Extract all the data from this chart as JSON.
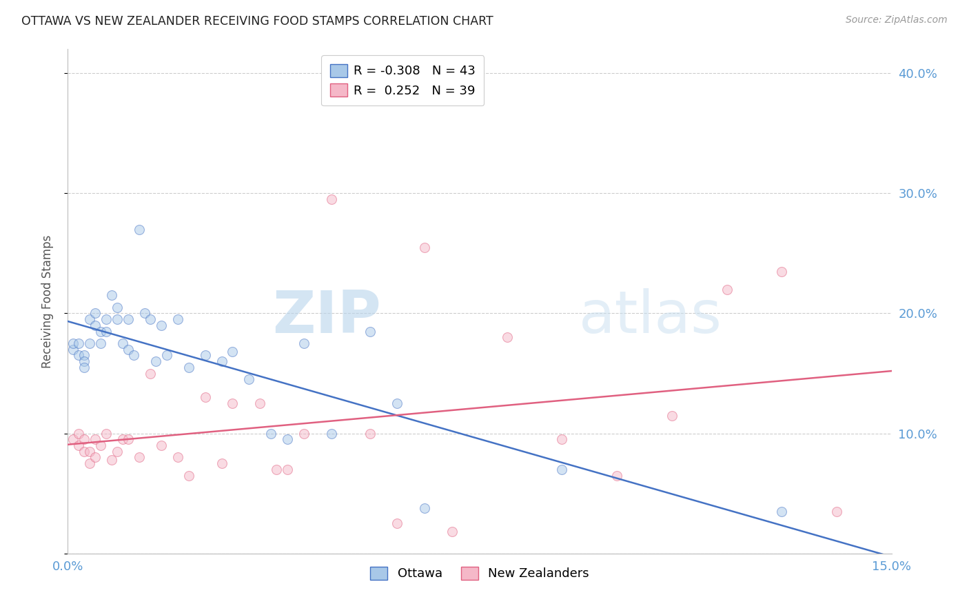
{
  "title": "OTTAWA VS NEW ZEALANDER RECEIVING FOOD STAMPS CORRELATION CHART",
  "source": "Source: ZipAtlas.com",
  "ylabel": "Receiving Food Stamps",
  "xlim": [
    0.0,
    0.15
  ],
  "ylim": [
    0.0,
    0.42
  ],
  "yticks": [
    0.0,
    0.1,
    0.2,
    0.3,
    0.4
  ],
  "ytick_labels": [
    "",
    "10.0%",
    "20.0%",
    "30.0%",
    "40.0%"
  ],
  "ottawa_color": "#a8c8e8",
  "nz_color": "#f5b8c8",
  "ottawa_line_color": "#4472c4",
  "nz_line_color": "#e06080",
  "legend_ottawa_R": "-0.308",
  "legend_ottawa_N": "43",
  "legend_nz_R": "0.252",
  "legend_nz_N": "39",
  "ottawa_x": [
    0.001,
    0.001,
    0.002,
    0.002,
    0.003,
    0.003,
    0.003,
    0.004,
    0.004,
    0.005,
    0.005,
    0.006,
    0.006,
    0.007,
    0.007,
    0.008,
    0.009,
    0.009,
    0.01,
    0.011,
    0.011,
    0.012,
    0.013,
    0.014,
    0.015,
    0.016,
    0.017,
    0.018,
    0.02,
    0.022,
    0.025,
    0.028,
    0.03,
    0.033,
    0.037,
    0.04,
    0.043,
    0.048,
    0.055,
    0.06,
    0.065,
    0.09,
    0.13
  ],
  "ottawa_y": [
    0.17,
    0.175,
    0.165,
    0.175,
    0.165,
    0.16,
    0.155,
    0.195,
    0.175,
    0.2,
    0.19,
    0.185,
    0.175,
    0.195,
    0.185,
    0.215,
    0.205,
    0.195,
    0.175,
    0.195,
    0.17,
    0.165,
    0.27,
    0.2,
    0.195,
    0.16,
    0.19,
    0.165,
    0.195,
    0.155,
    0.165,
    0.16,
    0.168,
    0.145,
    0.1,
    0.095,
    0.175,
    0.1,
    0.185,
    0.125,
    0.038,
    0.07,
    0.035
  ],
  "nz_x": [
    0.001,
    0.002,
    0.002,
    0.003,
    0.003,
    0.004,
    0.004,
    0.005,
    0.005,
    0.006,
    0.007,
    0.008,
    0.009,
    0.01,
    0.011,
    0.013,
    0.015,
    0.017,
    0.02,
    0.022,
    0.025,
    0.028,
    0.03,
    0.035,
    0.038,
    0.04,
    0.043,
    0.048,
    0.055,
    0.06,
    0.065,
    0.07,
    0.08,
    0.09,
    0.1,
    0.11,
    0.12,
    0.13,
    0.14
  ],
  "nz_y": [
    0.095,
    0.1,
    0.09,
    0.085,
    0.095,
    0.085,
    0.075,
    0.095,
    0.08,
    0.09,
    0.1,
    0.078,
    0.085,
    0.095,
    0.095,
    0.08,
    0.15,
    0.09,
    0.08,
    0.065,
    0.13,
    0.075,
    0.125,
    0.125,
    0.07,
    0.07,
    0.1,
    0.295,
    0.1,
    0.025,
    0.255,
    0.018,
    0.18,
    0.095,
    0.065,
    0.115,
    0.22,
    0.235,
    0.035
  ],
  "background_color": "#ffffff",
  "grid_color": "#cccccc",
  "title_color": "#222222",
  "axis_label_color": "#5b9bd5",
  "marker_size": 100,
  "marker_alpha": 0.5,
  "line_width": 1.8
}
